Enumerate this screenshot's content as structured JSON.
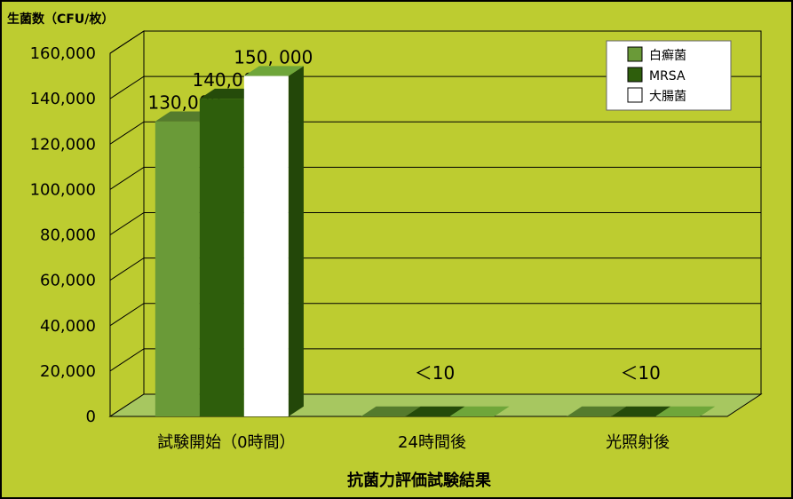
{
  "chart_data": {
    "type": "bar",
    "title": "",
    "ylabel": "生菌数（CFU/枚）",
    "xlabel": "抗菌力評価試験結果",
    "categories": [
      "試験開始（0時間）",
      "24時間後",
      "光照射後"
    ],
    "ylim": [
      0,
      160000
    ],
    "yticks": [
      {
        "value": 0,
        "label": "0"
      },
      {
        "value": 20000,
        "label": "20,000"
      },
      {
        "value": 40000,
        "label": "40,000"
      },
      {
        "value": 60000,
        "label": "60,000"
      },
      {
        "value": 80000,
        "label": "80,000"
      },
      {
        "value": 100000,
        "label": "100,000"
      },
      {
        "value": 120000,
        "label": "120,000"
      },
      {
        "value": 140000,
        "label": "140,000"
      },
      {
        "value": 160000,
        "label": "160,000"
      }
    ],
    "series": [
      {
        "name": "白癬菌",
        "values": [
          130000,
          10,
          10
        ],
        "color": "#6a9a38"
      },
      {
        "name": "MRSA",
        "values": [
          140000,
          10,
          10
        ],
        "color": "#2e5e0c"
      },
      {
        "name": "大腸菌",
        "values": [
          150000,
          10,
          10
        ],
        "color": "#ffffff"
      }
    ],
    "data_labels": [
      {
        "category_index": 0,
        "series_index": 0,
        "text": "130,000"
      },
      {
        "category_index": 0,
        "series_index": 1,
        "text": "140,000"
      },
      {
        "category_index": 0,
        "series_index": 2,
        "text": "150, 000"
      },
      {
        "category_index": 1,
        "series_index": 1,
        "text": "＜10"
      },
      {
        "category_index": 2,
        "series_index": 1,
        "text": "＜10"
      }
    ],
    "grid": true,
    "legend": "top-right",
    "colors": {
      "background": "#bdcc30",
      "floor": "#a7c760",
      "gridline": "#000000"
    }
  }
}
